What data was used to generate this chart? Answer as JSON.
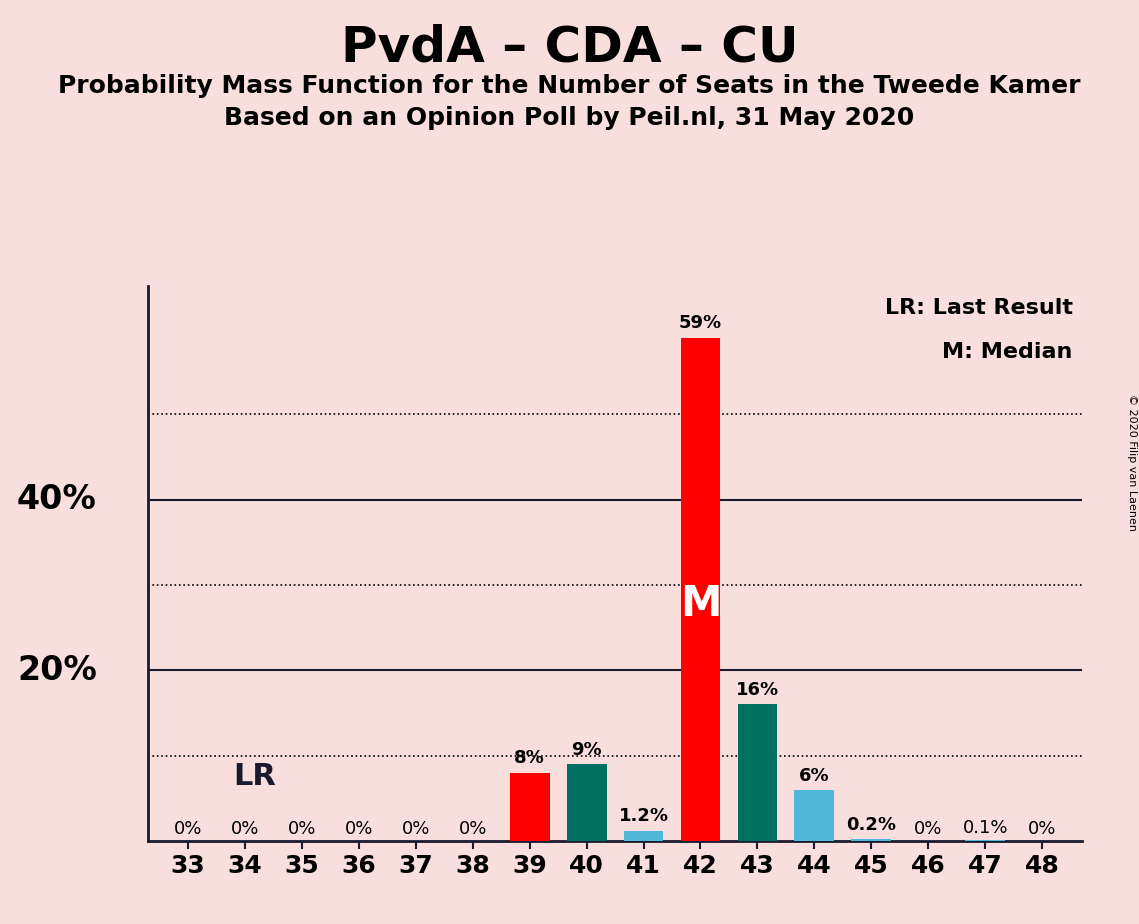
{
  "title": "PvdA – CDA – CU",
  "subtitle1": "Probability Mass Function for the Number of Seats in the Tweede Kamer",
  "subtitle2": "Based on an Opinion Poll by Peil.nl, 31 May 2020",
  "copyright": "© 2020 Filip van Laenen",
  "background_color": "#f9dede",
  "seats": [
    33,
    34,
    35,
    36,
    37,
    38,
    39,
    40,
    41,
    42,
    43,
    44,
    45,
    46,
    47,
    48
  ],
  "values": [
    0.0,
    0.0,
    0.0,
    0.0,
    0.0,
    0.0,
    0.08,
    0.09,
    0.012,
    0.59,
    0.16,
    0.06,
    0.002,
    0.0,
    0.001,
    0.0
  ],
  "labels": [
    "0%",
    "0%",
    "0%",
    "0%",
    "0%",
    "0%",
    "8%",
    "9%",
    "1.2%",
    "59%",
    "16%",
    "6%",
    "0.2%",
    "0%",
    "0.1%",
    "0%"
  ],
  "bar_colors": [
    "#ff0000",
    "#ff0000",
    "#ff0000",
    "#ff0000",
    "#ff0000",
    "#ff0000",
    "#ff0000",
    "#007060",
    "#4fb8d8",
    "#ff0000",
    "#007060",
    "#4fb8d8",
    "#4fb8d8",
    "#ff0000",
    "#4fb8d8",
    "#ff0000"
  ],
  "lr_seat": 39,
  "median_seat": 42,
  "ylim": [
    0,
    0.65
  ],
  "dotted_lines": [
    0.1,
    0.3,
    0.5
  ],
  "solid_lines": [
    0.2,
    0.4
  ],
  "ylabel_values": [
    0.2,
    0.4
  ],
  "ylabel_labels": [
    "20%",
    "40%"
  ],
  "legend_lr": "LR: Last Result",
  "legend_m": "M: Median",
  "lr_label": "LR",
  "m_label": "M",
  "title_fontsize": 36,
  "subtitle_fontsize": 18,
  "label_fontsize": 13,
  "tick_fontsize": 18,
  "ylabel_fontsize": 24,
  "legend_fontsize": 16,
  "lr_fontsize": 22,
  "m_fontsize": 30,
  "bar_width": 0.7
}
